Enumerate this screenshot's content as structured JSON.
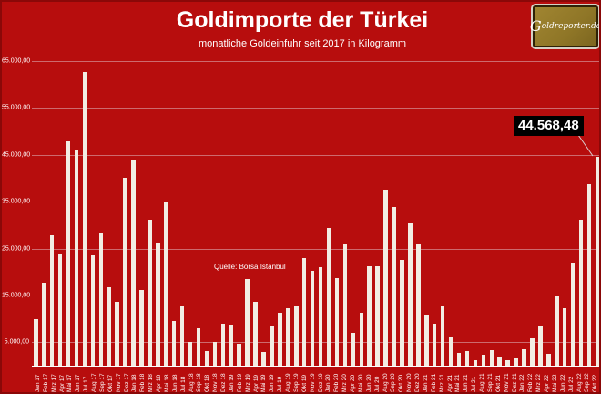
{
  "header": {
    "title": "Goldimporte der Türkei",
    "subtitle": "monatliche Goldeinfuhr seit 2017 in Kilogramm"
  },
  "logo": {
    "initial": "G",
    "rest": "oldreporter.de"
  },
  "annotation": {
    "source": "Quelle: Borsa Istanbul"
  },
  "callout": {
    "value_label": "44.568,48"
  },
  "colors": {
    "background": "#b70d0d",
    "border": "#8a0808",
    "bar": "#f2ede3",
    "grid": "#d4898f",
    "text": "#ffffff",
    "callout_bg": "#000000",
    "logo_bg": "#8f7627"
  },
  "chart_data": {
    "type": "bar",
    "title": "Goldimporte der Türkei",
    "subtitle": "monatliche Goldeinfuhr seit 2017 in Kilogramm",
    "source": "Quelle: Borsa Istanbul",
    "unit": "Kilogramm",
    "ylim": [
      0,
      65000
    ],
    "grid": true,
    "y_ticks": [
      {
        "value": 65000,
        "label": "65.000,00"
      },
      {
        "value": 55000,
        "label": "55.000,00"
      },
      {
        "value": 45000,
        "label": "45.000,00"
      },
      {
        "value": 35000,
        "label": "35.000,00"
      },
      {
        "value": 25000,
        "label": "25.000,00"
      },
      {
        "value": 15000,
        "label": "15.000,00"
      },
      {
        "value": 5000,
        "label": "5.000,00"
      }
    ],
    "categories": [
      "Jan 17",
      "Feb 17",
      "Mrz 17",
      "Apr 17",
      "Mai 17",
      "Jun 17",
      "Jul 17",
      "Aug 17",
      "Sep 17",
      "Okt 17",
      "Nov 17",
      "Dez 17",
      "Jan 18",
      "Feb 18",
      "Mrz 18",
      "Apr 18",
      "Mai 18",
      "Jun 18",
      "Jul 18",
      "Aug 18",
      "Sep 18",
      "Okt 18",
      "Nov 18",
      "Dez 18",
      "Jan 19",
      "Feb 19",
      "Mrz 19",
      "Apr 19",
      "Mai 19",
      "Jun 19",
      "Jul 19",
      "Aug 19",
      "Sep 19",
      "Okt 19",
      "Nov 19",
      "Dez 19",
      "Jan 20",
      "Feb 20",
      "Mrz 20",
      "Apr 20",
      "Mai 20",
      "Jun 20",
      "Jul 20",
      "Aug 20",
      "Sep 20",
      "Okt 20",
      "Nov 20",
      "Dez 20",
      "Jan 21",
      "Feb 21",
      "Mrz 21",
      "Apr 21",
      "Mai 21",
      "Jun 21",
      "Jul 21",
      "Aug 21",
      "Sep 21",
      "Okt 21",
      "Nov 21",
      "Dez 21",
      "Jan 22",
      "Feb 22",
      "Mrz 22",
      "Apr 22",
      "Mai 22",
      "Jun 22",
      "Jul 22",
      "Aug 22",
      "Sep 22",
      "Okt 22"
    ],
    "values": [
      9900,
      17700,
      27900,
      23700,
      47900,
      46100,
      62600,
      23500,
      28300,
      16800,
      13700,
      40100,
      43900,
      16200,
      31100,
      26200,
      34800,
      9500,
      12700,
      5000,
      8000,
      3200,
      5000,
      9000,
      8800,
      4700,
      18400,
      13700,
      3000,
      8500,
      11300,
      12200,
      12700,
      22900,
      20300,
      21000,
      29400,
      18600,
      26000,
      7000,
      11300,
      21300,
      21300,
      37500,
      33900,
      22600,
      30300,
      25800,
      10900,
      9000,
      12900,
      6100,
      2800,
      3100,
      1100,
      2300,
      3400,
      1900,
      1100,
      1600,
      3600,
      5800,
      8500,
      2600,
      15000,
      12200,
      21900,
      31200,
      38800,
      44568.48
    ],
    "highlight": {
      "category": "Okt 22",
      "label": "44.568,48"
    },
    "legend": null
  }
}
